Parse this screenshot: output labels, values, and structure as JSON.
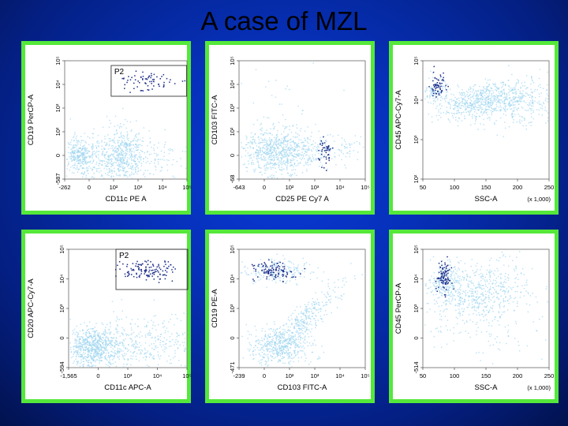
{
  "title": "A case of MZL",
  "colors": {
    "panel_border": "#55e83a",
    "background": "#0630b8",
    "population_density": "#9fd6f0",
    "gated_events": "#1e2f8a"
  },
  "chart_data": [
    {
      "type": "scatter",
      "xlabel": "CD11c PE A",
      "ylabel": "CD19 PerCP-A",
      "x_ticks": [
        "-262",
        "0",
        "10²",
        "10³",
        "10⁴",
        "10⁵"
      ],
      "y_ticks": [
        "-587",
        "0",
        "10²",
        "10³",
        "10⁴",
        "10⁵"
      ],
      "gates": [
        {
          "label": "P2"
        }
      ],
      "populations": [
        "CD19- cluster",
        "CD19- CD11c+ cluster",
        "P2 gated CD19+ events"
      ]
    },
    {
      "type": "scatter",
      "xlabel": "CD25 PE Cy7 A",
      "ylabel": "CD103 FITC-A",
      "x_ticks": [
        "-643",
        "0",
        "10²",
        "10³",
        "10⁴",
        "10⁵"
      ],
      "y_ticks": [
        "-68",
        "0",
        "10²",
        "10³",
        "10⁴",
        "10⁵"
      ],
      "gates": [],
      "populations": [
        "main cluster",
        "CD25+ gated events"
      ]
    },
    {
      "type": "scatter",
      "xlabel": "SSC-A",
      "ylabel": "CD45 APC-Cy7-A",
      "x_ticks": [
        "50",
        "100",
        "150",
        "200",
        "250"
      ],
      "x_unit": "(x 1,000)",
      "y_ticks": [
        "10²",
        "10³",
        "10⁴",
        "10⁵"
      ],
      "gates": [],
      "populations": [
        "CD45+ SSC-high cluster",
        "CD45 bright lymphocytes"
      ]
    },
    {
      "type": "scatter",
      "xlabel": "CD11c APC-A",
      "ylabel": "CD20 APC-Cy7-A",
      "x_ticks": [
        "-1,565",
        "0",
        "10³",
        "10⁴",
        "10⁵"
      ],
      "y_ticks": [
        "-594",
        "0",
        "10³",
        "10⁴",
        "10⁵"
      ],
      "gates": [
        {
          "label": "P2"
        }
      ],
      "populations": [
        "main cluster",
        "P2 gated CD20+ events"
      ]
    },
    {
      "type": "scatter",
      "xlabel": "CD103 FITC-A",
      "ylabel": "CD19 PE-A",
      "x_ticks": [
        "-239",
        "0",
        "10²",
        "10³",
        "10⁴",
        "10⁵"
      ],
      "y_ticks": [
        "-471",
        "0",
        "10³",
        "10⁴",
        "10⁵"
      ],
      "gates": [],
      "populations": [
        "CD19- cluster",
        "CD19+ diagonal",
        "CD19+ gated events"
      ]
    },
    {
      "type": "scatter",
      "xlabel": "SSC-A",
      "ylabel": "CD45 PerCP-A",
      "x_ticks": [
        "50",
        "100",
        "150",
        "200",
        "250"
      ],
      "x_unit": "(x 1,000)",
      "y_ticks": [
        "-514",
        "0",
        "10³",
        "10⁴",
        "10⁵"
      ],
      "gates": [],
      "populations": [
        "CD45+ cluster",
        "CD45 bright lymphocytes"
      ]
    }
  ]
}
